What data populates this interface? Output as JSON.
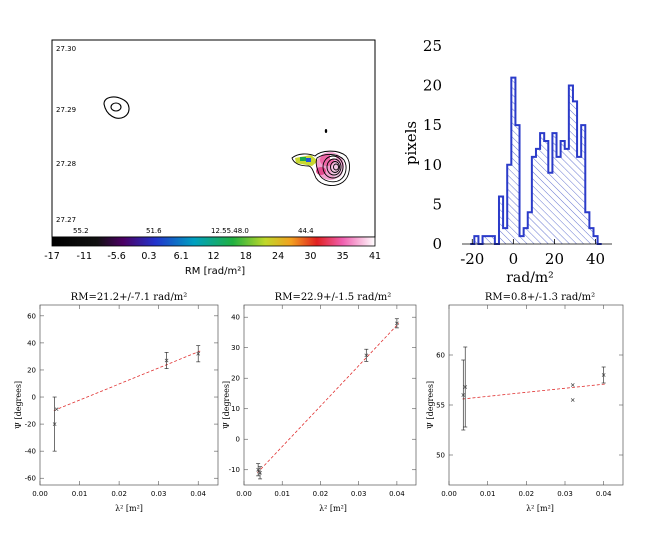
{
  "chart_data": [
    {
      "type": "contour-map",
      "dec_ticks": [
        "27.30",
        "27.29",
        "27.28",
        "27.27"
      ],
      "ra_ticks": [
        "55.2",
        "51.6",
        "12.55.48.0",
        "44.4"
      ],
      "colorbar": {
        "ticks": [
          "-17",
          "-11",
          "-5.6",
          "0.3",
          "6.1",
          "12",
          "18",
          "24",
          "30",
          "35",
          "41"
        ],
        "label": "RM  [rad/m²]",
        "range": [
          -17,
          41
        ]
      }
    },
    {
      "type": "histogram",
      "xlabel": "rad/m²",
      "ylabel": "pixels",
      "xlim": [
        -25,
        48
      ],
      "ylim": [
        0,
        26
      ],
      "xticks": [
        -20,
        0,
        20,
        40
      ],
      "yticks": [
        0,
        5,
        10,
        15,
        20,
        25
      ],
      "bins": [
        {
          "x0": -21,
          "x1": -19,
          "v": 0
        },
        {
          "x0": -19,
          "x1": -17,
          "v": 1
        },
        {
          "x0": -17,
          "x1": -15,
          "v": 0
        },
        {
          "x0": -15,
          "x1": -9,
          "v": 1
        },
        {
          "x0": -9,
          "x1": -7,
          "v": 0
        },
        {
          "x0": -7,
          "x1": -5,
          "v": 6
        },
        {
          "x0": -5,
          "x1": -3,
          "v": 2
        },
        {
          "x0": -3,
          "x1": -1,
          "v": 10
        },
        {
          "x0": -1,
          "x1": 1,
          "v": 21
        },
        {
          "x0": 1,
          "x1": 3,
          "v": 15
        },
        {
          "x0": 3,
          "x1": 5,
          "v": 1
        },
        {
          "x0": 5,
          "x1": 7,
          "v": 2
        },
        {
          "x0": 7,
          "x1": 9,
          "v": 4
        },
        {
          "x0": 9,
          "x1": 11,
          "v": 11
        },
        {
          "x0": 11,
          "x1": 13,
          "v": 12
        },
        {
          "x0": 13,
          "x1": 15,
          "v": 14
        },
        {
          "x0": 15,
          "x1": 17,
          "v": 13
        },
        {
          "x0": 17,
          "x1": 19,
          "v": 9
        },
        {
          "x0": 19,
          "x1": 21,
          "v": 14
        },
        {
          "x0": 21,
          "x1": 23,
          "v": 11
        },
        {
          "x0": 23,
          "x1": 25,
          "v": 13
        },
        {
          "x0": 25,
          "x1": 27,
          "v": 12
        },
        {
          "x0": 27,
          "x1": 29,
          "v": 20
        },
        {
          "x0": 29,
          "x1": 31,
          "v": 18
        },
        {
          "x0": 31,
          "x1": 33,
          "v": 11
        },
        {
          "x0": 33,
          "x1": 35,
          "v": 15
        },
        {
          "x0": 35,
          "x1": 37,
          "v": 4
        },
        {
          "x0": 37,
          "x1": 39,
          "v": 2
        },
        {
          "x0": 39,
          "x1": 41,
          "v": 1
        },
        {
          "x0": 41,
          "x1": 43,
          "v": 0
        }
      ]
    },
    {
      "type": "scatter",
      "title": "RM=21.2+/-7.1 rad/m²",
      "xlabel": "λ² [m²]",
      "ylabel": "Ψ [degrees]",
      "xlim": [
        0,
        0.045
      ],
      "ylim": [
        -65,
        68
      ],
      "xticks": [
        0,
        0.01,
        0.02,
        0.03,
        0.04
      ],
      "xtick_labels": [
        "0.00",
        "0.01",
        "0.02",
        "0.03",
        "0.04"
      ],
      "yticks": [
        -60,
        -40,
        -20,
        0,
        20,
        40,
        60
      ],
      "points": [
        {
          "x": 0.0037,
          "y": -20,
          "err": 20
        },
        {
          "x": 0.0042,
          "y": -9,
          "err": 0
        },
        {
          "x": 0.032,
          "y": 27,
          "err": 6
        },
        {
          "x": 0.04,
          "y": 32,
          "err": 6
        }
      ],
      "fit": {
        "x": [
          0.0035,
          0.0405
        ],
        "y": [
          -10,
          34
        ]
      }
    },
    {
      "type": "scatter",
      "title": "RM=22.9+/-1.5 rad/m²",
      "xlabel": "λ² [m²]",
      "ylabel": "Ψ [degrees]",
      "xlim": [
        0,
        0.045
      ],
      "ylim": [
        -15,
        44
      ],
      "xticks": [
        0,
        0.01,
        0.02,
        0.03,
        0.04
      ],
      "xtick_labels": [
        "0.00",
        "0.01",
        "0.02",
        "0.03",
        "0.04"
      ],
      "yticks": [
        -10,
        0,
        10,
        20,
        30,
        40
      ],
      "points": [
        {
          "x": 0.0037,
          "y": -10,
          "err": 2
        },
        {
          "x": 0.0042,
          "y": -11,
          "err": 2
        },
        {
          "x": 0.032,
          "y": 27.5,
          "err": 2
        },
        {
          "x": 0.04,
          "y": 38,
          "err": 1.5
        }
      ],
      "fit": {
        "x": [
          0.0035,
          0.0405
        ],
        "y": [
          -11,
          38
        ]
      }
    },
    {
      "type": "scatter",
      "title": "RM=0.8+/-1.3 rad/m²",
      "xlabel": "λ² [m²]",
      "ylabel": "Ψ [degrees]",
      "xlim": [
        0,
        0.045
      ],
      "ylim": [
        47,
        65
      ],
      "xticks": [
        0,
        0.01,
        0.02,
        0.03,
        0.04
      ],
      "xtick_labels": [
        "0.00",
        "0.01",
        "0.02",
        "0.03",
        "0.04"
      ],
      "yticks": [
        50,
        55,
        60
      ],
      "points": [
        {
          "x": 0.0037,
          "y": 56,
          "err": 3.5
        },
        {
          "x": 0.0042,
          "y": 56.8,
          "err": 4
        },
        {
          "x": 0.032,
          "y": 55.5,
          "err": 0
        },
        {
          "x": 0.032,
          "y": 57,
          "err": 0
        },
        {
          "x": 0.04,
          "y": 58,
          "err": 0.8
        }
      ],
      "fit": {
        "x": [
          0.0035,
          0.0405
        ],
        "y": [
          55.6,
          57.1
        ]
      }
    }
  ]
}
